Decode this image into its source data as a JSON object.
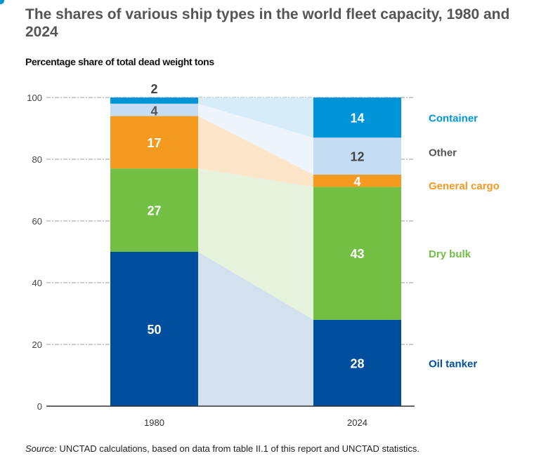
{
  "title": "The shares of various ship types in the world fleet capacity, 1980 and 2024",
  "subtitle": "Percentage share of  total dead weight tons",
  "source_label": "Source:",
  "source_text": " UNCTAD calculations, based on data from table II.1 of this report and UNCTAD statistics.",
  "chart_data": {
    "type": "bar",
    "stacked": true,
    "ylim": [
      0,
      100
    ],
    "yticks": [
      0,
      20,
      40,
      60,
      80,
      100
    ],
    "categories": [
      "1980",
      "2024"
    ],
    "series": [
      {
        "name": "Oil tanker",
        "values": [
          50,
          28
        ],
        "color": "#004f9f",
        "band": "#d3e0ee",
        "label_color": "#fff"
      },
      {
        "name": "Dry bulk",
        "values": [
          27,
          43
        ],
        "color": "#72bf44",
        "band": "#e6f3dc",
        "label_color": "#fff"
      },
      {
        "name": "General cargo",
        "values": [
          17,
          4
        ],
        "color": "#f39a1f",
        "band": "#fce5c8",
        "label_color": "#fff"
      },
      {
        "name": "Other",
        "values": [
          4,
          12
        ],
        "color": "#c5ddf3",
        "band": "#eef4fb",
        "label_color": "#444"
      },
      {
        "name": "Container",
        "values": [
          2,
          14
        ],
        "color": "#0095d9",
        "band": "#d6ecf8",
        "label_color": "#fff"
      }
    ],
    "grid": "dashed horizontal",
    "legend": "right, aligned to 2024 segments"
  }
}
